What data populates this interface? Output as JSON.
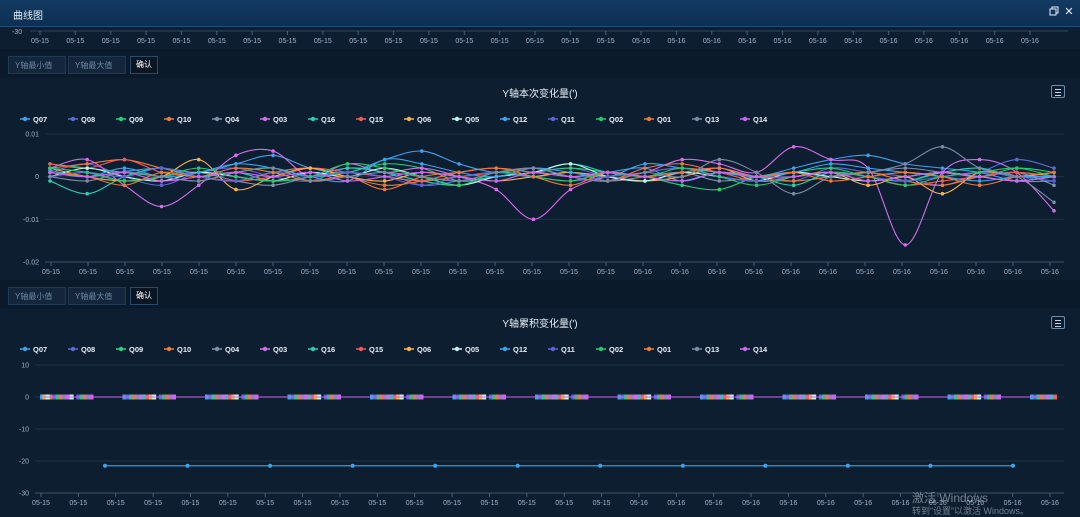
{
  "window": {
    "title": "曲线图",
    "restore_icon": "restore-icon",
    "close_icon": "close-icon"
  },
  "top_strip": {
    "y_tick": "-30",
    "x_tick_labels": [
      "05-15",
      "05-15",
      "05-15",
      "05-15",
      "05-15",
      "05-15",
      "05-15",
      "05-15",
      "05-15",
      "05-15",
      "05-15",
      "05-15",
      "05-15",
      "05-15",
      "05-15",
      "05-15",
      "05-15",
      "05-16",
      "05-16",
      "05-16",
      "05-16",
      "05-16",
      "05-16",
      "05-16",
      "05-16",
      "05-16",
      "05-16",
      "05-16",
      "05-16"
    ]
  },
  "toolbar1": {
    "ymin_placeholder": "Y轴最小值",
    "ymax_placeholder": "Y轴最大值",
    "confirm_label": "确认"
  },
  "toolbar2": {
    "ymin_placeholder": "Y轴最小值",
    "ymax_placeholder": "Y轴最大值",
    "confirm_label": "确认"
  },
  "legend": [
    {
      "name": "Q07",
      "color": "#3fa0ee"
    },
    {
      "name": "Q08",
      "color": "#5b6bd6"
    },
    {
      "name": "Q09",
      "color": "#22d47a"
    },
    {
      "name": "Q10",
      "color": "#f07a3a"
    },
    {
      "name": "Q04",
      "color": "#8290aa"
    },
    {
      "name": "Q03",
      "color": "#d26ee6"
    },
    {
      "name": "Q16",
      "color": "#25d2b2"
    },
    {
      "name": "Q15",
      "color": "#f25a5a"
    },
    {
      "name": "Q06",
      "color": "#f6b24a"
    },
    {
      "name": "Q05",
      "color": "#bff3ee"
    },
    {
      "name": "Q12",
      "color": "#3aa6f0"
    },
    {
      "name": "Q11",
      "color": "#5a63d8"
    },
    {
      "name": "Q02",
      "color": "#27c96a"
    },
    {
      "name": "Q01",
      "color": "#ee7a34"
    },
    {
      "name": "Q13",
      "color": "#7d8aa5"
    },
    {
      "name": "Q14",
      "color": "#cc66ee"
    }
  ],
  "watermark": {
    "line1": "激活 Windows",
    "line2": "转到“设置”以激活 Windows。"
  },
  "chart_data": [
    {
      "type": "line",
      "title": "Y轴本次变化量(')",
      "ylim": [
        -0.02,
        0.01
      ],
      "y_ticks": [
        "0.01",
        "0",
        "-0.01",
        "-0.02"
      ],
      "x_tick_labels": [
        "05-15",
        "05-15",
        "05-15",
        "05-15",
        "05-15",
        "05-15",
        "05-15",
        "05-15",
        "05-15",
        "05-15",
        "05-15",
        "05-15",
        "05-15",
        "05-15",
        "05-15",
        "05-15",
        "05-16",
        "05-16",
        "05-16",
        "05-16",
        "05-16",
        "05-16",
        "05-16",
        "05-16",
        "05-16",
        "05-16",
        "05-16",
        "05-16"
      ],
      "grid": true,
      "legend_position": "top-left",
      "series": [
        {
          "name": "Q07",
          "values": [
            0.0015,
            0.0,
            0.0012,
            0.002,
            0.001,
            0.003,
            0.005,
            0.002,
            0.001,
            0.004,
            0.006,
            0.003,
            0.001,
            0.002,
            0.0,
            0.001,
            0.002,
            -0.001,
            0.001,
            0.0,
            0.002,
            0.004,
            0.005,
            0.003,
            0.002,
            0.001,
            -0.001,
            -0.001
          ]
        },
        {
          "name": "Q08",
          "values": [
            0.001,
            0.003,
            0.0,
            -0.002,
            0.001,
            0.002,
            0.0,
            -0.001,
            0.002,
            0.001,
            -0.002,
            -0.001,
            0.0,
            0.001,
            0.002,
            0.0,
            -0.001,
            0.001,
            0.002,
            0.0,
            -0.001,
            0.002,
            0.001,
            0.0,
            -0.002,
            0.001,
            0.004,
            0.002
          ]
        },
        {
          "name": "Q09",
          "values": [
            0.003,
            0.002,
            0.001,
            0.0,
            -0.001,
            0.001,
            0.002,
            0.0,
            0.001,
            0.003,
            0.002,
            -0.001,
            0.0,
            0.001,
            0.002,
            0.001,
            0.0,
            -0.002,
            -0.003,
            0.0,
            0.001,
            0.002,
            0.0,
            -0.001,
            0.001,
            0.0,
            0.002,
            0.001
          ]
        },
        {
          "name": "Q10",
          "values": [
            0.002,
            0.003,
            0.004,
            0.002,
            0.0,
            -0.001,
            0.001,
            0.002,
            0.0,
            -0.002,
            -0.001,
            0.001,
            0.002,
            0.001,
            0.0,
            -0.001,
            0.002,
            0.003,
            0.001,
            0.0,
            -0.001,
            0.0,
            0.001,
            -0.001,
            -0.002,
            0.0,
            0.001,
            0.0
          ]
        },
        {
          "name": "Q04",
          "values": [
            0.0,
            0.001,
            -0.001,
            0.0,
            0.001,
            -0.001,
            -0.002,
            0.0,
            0.001,
            0.0,
            -0.001,
            0.0,
            0.001,
            0.0,
            0.001,
            -0.001,
            0.0,
            0.001,
            -0.001,
            0.0,
            0.001,
            0.0,
            0.001,
            0.002,
            0.001,
            0.0,
            0.001,
            -0.002
          ]
        },
        {
          "name": "Q03",
          "values": [
            0.002,
            0.004,
            -0.002,
            -0.007,
            -0.002,
            0.005,
            0.006,
            0.0,
            0.003,
            0.001,
            0.002,
            0.0,
            -0.003,
            -0.01,
            -0.003,
            0.0,
            0.001,
            0.004,
            0.003,
            0.001,
            0.007,
            0.004,
            0.002,
            -0.016,
            0.001,
            0.004,
            0.001,
            -0.008
          ]
        },
        {
          "name": "Q16",
          "values": [
            -0.001,
            -0.004,
            0.0,
            0.002,
            0.0,
            0.001,
            -0.001,
            0.0,
            0.002,
            0.001,
            -0.001,
            -0.002,
            0.0,
            0.001,
            0.003,
            0.001,
            0.0,
            -0.001,
            0.001,
            0.0,
            -0.002,
            0.001,
            0.0,
            -0.001,
            0.001,
            0.002,
            0.0,
            0.0
          ]
        },
        {
          "name": "Q15",
          "values": [
            0.003,
            0.002,
            0.004,
            0.001,
            0.0,
            -0.001,
            0.0,
            0.002,
            0.001,
            0.0,
            -0.001,
            0.0,
            0.001,
            0.002,
            0.0,
            -0.001,
            0.001,
            0.002,
            0.001,
            -0.001,
            0.0,
            0.001,
            0.0,
            -0.002,
            -0.001,
            0.0,
            0.001,
            0.0
          ]
        },
        {
          "name": "Q06",
          "values": [
            0.002,
            0.0,
            -0.001,
            0.0,
            0.004,
            -0.003,
            0.0,
            0.002,
            0.0,
            -0.001,
            0.001,
            0.0,
            -0.001,
            0.0,
            0.001,
            0.0,
            -0.001,
            0.0,
            0.002,
            -0.001,
            0.0,
            0.001,
            -0.002,
            0.0,
            -0.004,
            0.001,
            0.0,
            0.001
          ]
        },
        {
          "name": "Q05",
          "values": [
            0.0,
            0.002,
            0.0,
            -0.001,
            0.001,
            0.0,
            -0.001,
            0.001,
            0.0,
            0.002,
            0.0,
            -0.002,
            0.0,
            0.001,
            0.003,
            0.0,
            -0.001,
            0.001,
            0.0,
            -0.001,
            0.001,
            0.0,
            -0.001,
            0.0,
            0.001,
            0.0,
            -0.001,
            0.0
          ]
        },
        {
          "name": "Q12",
          "values": [
            0.001,
            0.0,
            0.002,
            0.0,
            0.001,
            0.003,
            0.002,
            0.0,
            -0.001,
            0.004,
            0.003,
            0.001,
            0.0,
            0.002,
            0.001,
            0.0,
            0.003,
            0.002,
            0.001,
            0.0,
            0.001,
            0.003,
            0.002,
            0.001,
            0.0,
            -0.001,
            0.0,
            0.0
          ]
        },
        {
          "name": "Q11",
          "values": [
            0.0,
            0.001,
            0.0,
            0.002,
            0.0,
            -0.001,
            0.001,
            0.0,
            0.001,
            0.0,
            -0.002,
            0.0,
            0.001,
            0.0,
            -0.001,
            0.0,
            0.001,
            0.002,
            0.0,
            -0.001,
            0.0,
            0.001,
            0.0,
            -0.001,
            0.0,
            0.001,
            0.0,
            -0.001
          ]
        },
        {
          "name": "Q02",
          "values": [
            0.002,
            0.001,
            -0.001,
            0.0,
            0.002,
            0.0,
            -0.001,
            0.0,
            0.003,
            0.002,
            0.0,
            -0.002,
            0.001,
            0.0,
            -0.001,
            0.001,
            0.0,
            0.002,
            0.0,
            -0.002,
            0.0,
            0.001,
            0.0,
            -0.002,
            0.0,
            0.001,
            0.002,
            0.0
          ]
        },
        {
          "name": "Q01",
          "values": [
            0.001,
            0.0,
            -0.002,
            0.001,
            0.0,
            0.002,
            0.001,
            -0.001,
            0.0,
            -0.003,
            0.0,
            0.001,
            0.002,
            0.0,
            -0.002,
            0.001,
            0.0,
            0.001,
            0.002,
            0.0,
            0.001,
            -0.001,
            0.0,
            0.001,
            0.0,
            -0.002,
            0.0,
            0.001
          ]
        },
        {
          "name": "Q13",
          "values": [
            0.0,
            -0.001,
            0.001,
            0.0,
            -0.001,
            0.001,
            0.002,
            -0.001,
            0.0,
            0.001,
            0.0,
            -0.001,
            0.001,
            0.002,
            0.0,
            -0.001,
            0.001,
            0.0,
            0.004,
            0.001,
            -0.004,
            0.0,
            0.001,
            0.003,
            0.007,
            0.002,
            0.0,
            -0.006
          ]
        },
        {
          "name": "Q14",
          "values": [
            0.001,
            0.0,
            0.001,
            -0.001,
            0.0,
            0.001,
            0.0,
            0.001,
            -0.001,
            0.0,
            0.001,
            0.0,
            -0.001,
            0.001,
            0.0,
            0.001,
            0.0,
            -0.001,
            0.001,
            0.0,
            0.0,
            0.001,
            -0.001,
            0.0,
            0.001,
            0.0,
            -0.001,
            0.0
          ]
        }
      ]
    },
    {
      "type": "line",
      "title": "Y轴累积变化量(')",
      "ylim": [
        -30,
        10
      ],
      "y_ticks": [
        "10",
        "0",
        "-10",
        "-20",
        "-30"
      ],
      "x_tick_labels": [
        "05-15",
        "05-15",
        "05-15",
        "05-15",
        "05-15",
        "05-15",
        "05-15",
        "05-15",
        "05-15",
        "05-15",
        "05-15",
        "05-15",
        "05-15",
        "05-15",
        "05-15",
        "05-15",
        "05-16",
        "05-16",
        "05-16",
        "05-16",
        "05-16",
        "05-16",
        "05-16",
        "05-16",
        "05-16",
        "05-16",
        "05-16",
        "05-16"
      ],
      "grid": true,
      "legend_position": "top-left",
      "baseline_series_value": 0,
      "offset_series": {
        "name": "Q12",
        "value": -21.5,
        "points": 12
      }
    }
  ]
}
